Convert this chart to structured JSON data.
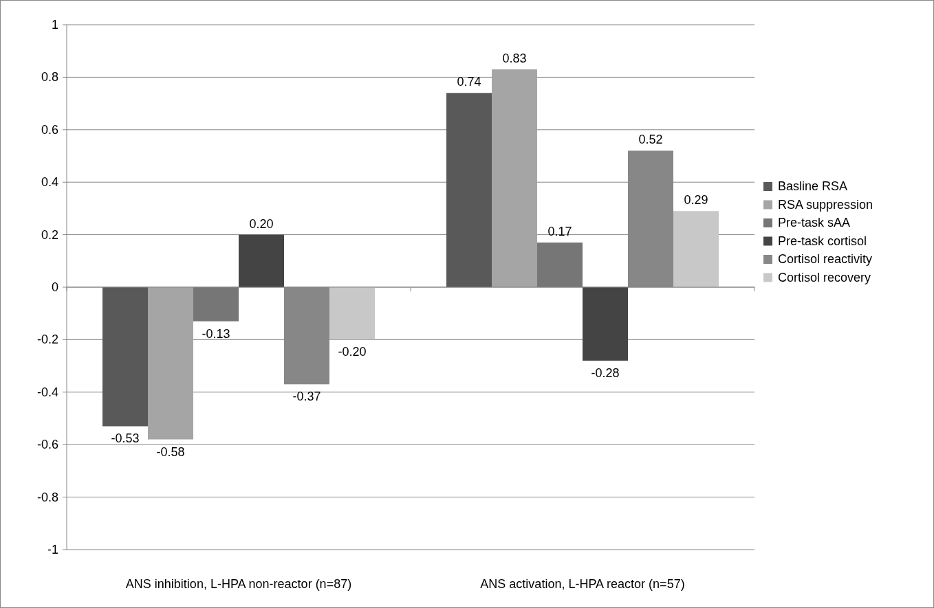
{
  "chart_data": {
    "type": "bar",
    "categories": [
      "ANS inhibition, L-HPA non-reactor (n=87)",
      "ANS activation, L-HPA reactor (n=57)"
    ],
    "series": [
      {
        "name": "Basline RSA",
        "color": "#595959",
        "values": [
          -0.53,
          0.74
        ],
        "value_labels": [
          "-0.53",
          "0.74"
        ]
      },
      {
        "name": "RSA suppression",
        "color": "#a5a5a5",
        "values": [
          -0.58,
          0.83
        ],
        "value_labels": [
          "-0.58",
          "0.83"
        ]
      },
      {
        "name": "Pre-task sAA",
        "color": "#767676",
        "values": [
          -0.13,
          0.17
        ],
        "value_labels": [
          "-0.13",
          "0.17"
        ]
      },
      {
        "name": "Pre-task cortisol",
        "color": "#444444",
        "values": [
          0.2,
          -0.28
        ],
        "value_labels": [
          "0.20",
          "-0.28"
        ]
      },
      {
        "name": "Cortisol reactivity",
        "color": "#878787",
        "values": [
          -0.37,
          0.52
        ],
        "value_labels": [
          "-0.37",
          "0.52"
        ]
      },
      {
        "name": "Cortisol recovery",
        "color": "#c8c8c8",
        "values": [
          -0.2,
          0.29
        ],
        "value_labels": [
          "-0.20",
          "0.29"
        ]
      }
    ],
    "ylim": [
      -1,
      1
    ],
    "yticks": [
      -1,
      {
        "value": -0.8,
        "label": "-0.8"
      },
      {
        "value": -0.6,
        "label": "-0.6"
      },
      {
        "value": -0.4,
        "label": "-0.4"
      },
      {
        "value": -0.2,
        "label": "-0.2"
      },
      0,
      {
        "value": 0.2,
        "label": "0.2"
      },
      {
        "value": 0.4,
        "label": "0.4"
      },
      {
        "value": 0.6,
        "label": "0.6"
      },
      {
        "value": 0.8,
        "label": "0.8"
      },
      1
    ],
    "grid": "y",
    "legend": "right"
  }
}
